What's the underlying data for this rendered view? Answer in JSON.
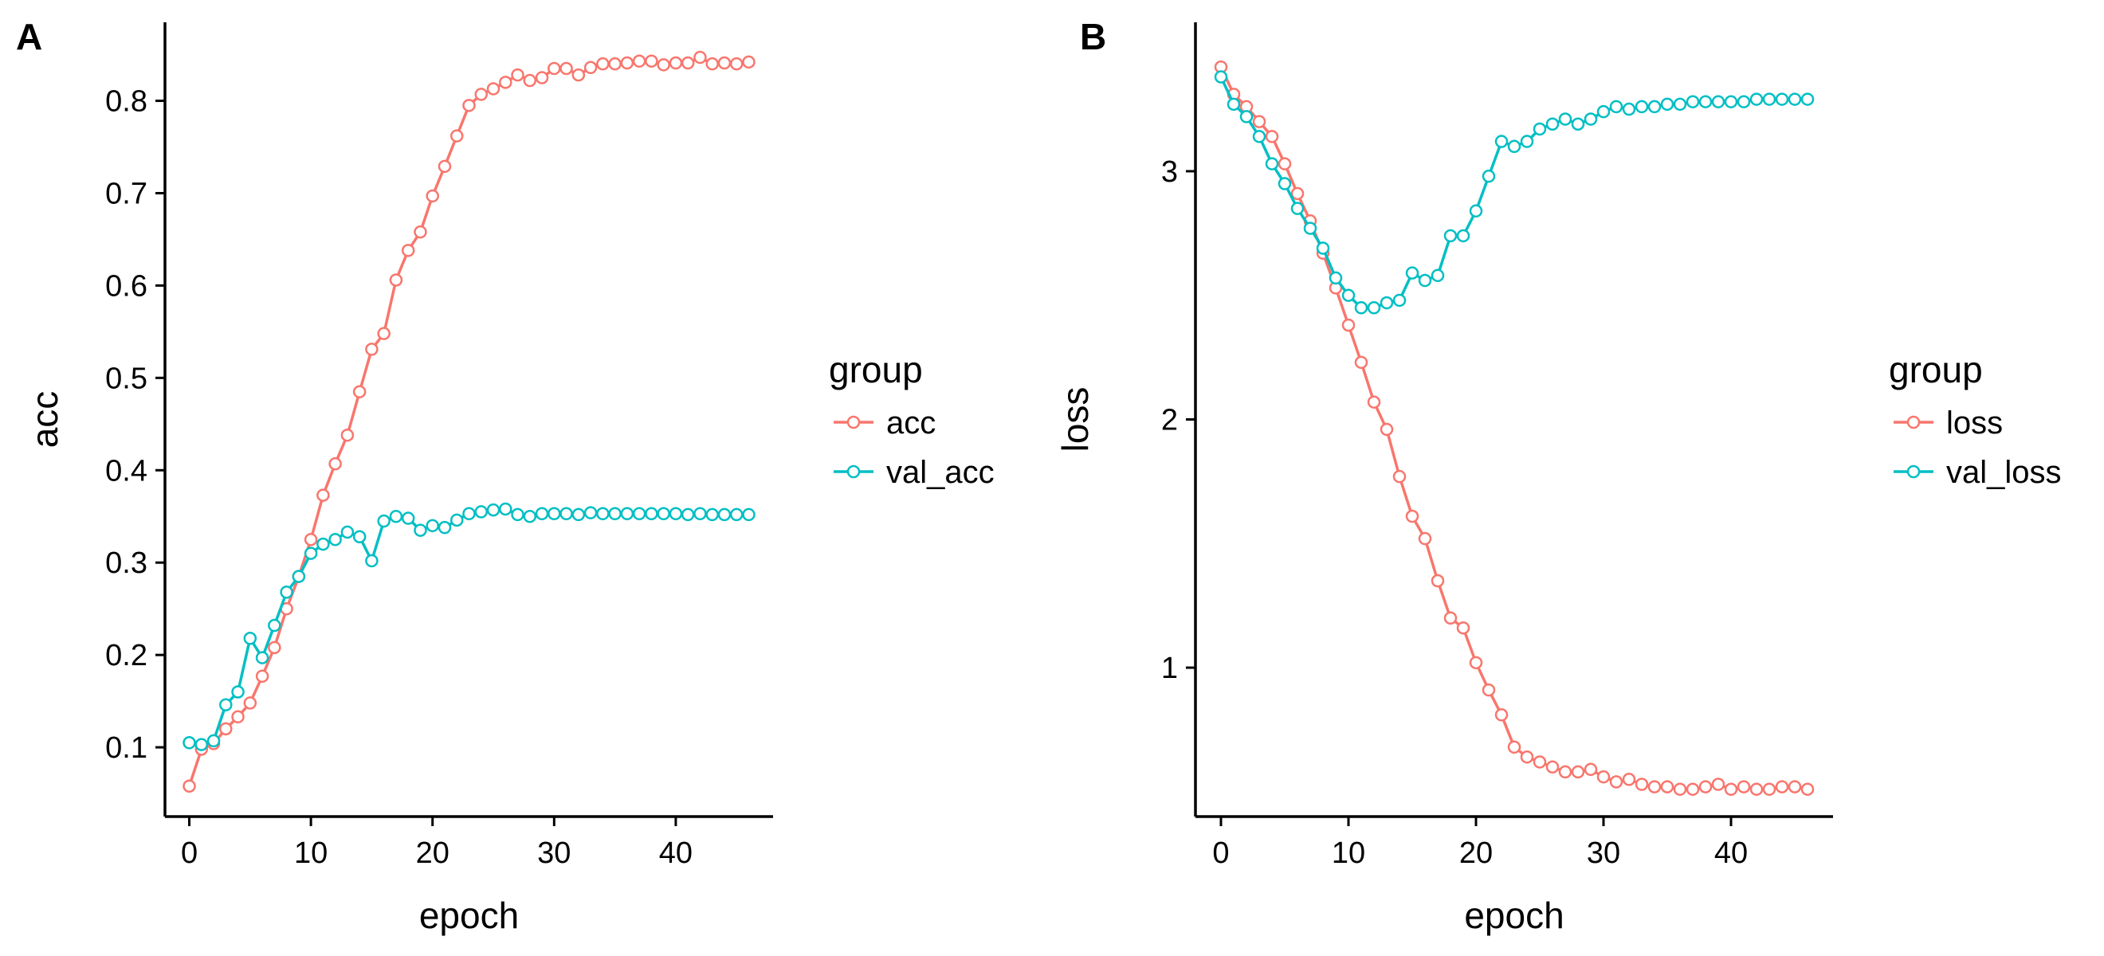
{
  "chart_data": [
    {
      "panel": "A",
      "type": "line",
      "xlabel": "epoch",
      "ylabel": "acc",
      "xlim": [
        -2,
        48
      ],
      "ylim": [
        0.025,
        0.885
      ],
      "xticks": [
        0,
        10,
        20,
        30,
        40
      ],
      "yticks": [
        0.1,
        0.2,
        0.3,
        0.4,
        0.5,
        0.6,
        0.7,
        0.8
      ],
      "grid": false,
      "legend": {
        "title": "group",
        "placement": "right"
      },
      "x": [
        0,
        1,
        2,
        3,
        4,
        5,
        6,
        7,
        8,
        9,
        10,
        11,
        12,
        13,
        14,
        15,
        16,
        17,
        18,
        19,
        20,
        21,
        22,
        23,
        24,
        25,
        26,
        27,
        28,
        29,
        30,
        31,
        32,
        33,
        34,
        35,
        36,
        37,
        38,
        39,
        40,
        41,
        42,
        43,
        44,
        45,
        46
      ],
      "series": [
        {
          "name": "acc",
          "color": "#F8766D",
          "values": [
            0.058,
            0.098,
            0.104,
            0.12,
            0.133,
            0.148,
            0.177,
            0.208,
            0.25,
            0.285,
            0.325,
            0.373,
            0.407,
            0.438,
            0.485,
            0.531,
            0.548,
            0.606,
            0.638,
            0.658,
            0.697,
            0.729,
            0.762,
            0.795,
            0.807,
            0.813,
            0.82,
            0.828,
            0.822,
            0.825,
            0.835,
            0.835,
            0.828,
            0.836,
            0.84,
            0.84,
            0.841,
            0.843,
            0.843,
            0.839,
            0.841,
            0.841,
            0.847,
            0.84,
            0.841,
            0.84,
            0.842
          ]
        },
        {
          "name": "val_acc",
          "color": "#00BFC4",
          "values": [
            0.105,
            0.103,
            0.107,
            0.146,
            0.16,
            0.218,
            0.197,
            0.232,
            0.268,
            0.285,
            0.31,
            0.32,
            0.325,
            0.333,
            0.328,
            0.302,
            0.345,
            0.35,
            0.348,
            0.335,
            0.34,
            0.338,
            0.346,
            0.353,
            0.355,
            0.357,
            0.358,
            0.352,
            0.35,
            0.353,
            0.353,
            0.353,
            0.352,
            0.354,
            0.353,
            0.353,
            0.353,
            0.353,
            0.353,
            0.353,
            0.353,
            0.352,
            0.353,
            0.352,
            0.352,
            0.352,
            0.352
          ]
        }
      ]
    },
    {
      "panel": "B",
      "type": "line",
      "xlabel": "epoch",
      "ylabel": "loss",
      "xlim": [
        -2,
        48
      ],
      "ylim": [
        0.4,
        3.6
      ],
      "xticks": [
        0,
        10,
        20,
        30,
        40
      ],
      "yticks": [
        1,
        2,
        3
      ],
      "grid": false,
      "legend": {
        "title": "group",
        "placement": "right"
      },
      "x": [
        0,
        1,
        2,
        3,
        4,
        5,
        6,
        7,
        8,
        9,
        10,
        11,
        12,
        13,
        14,
        15,
        16,
        17,
        18,
        19,
        20,
        21,
        22,
        23,
        24,
        25,
        26,
        27,
        28,
        29,
        30,
        31,
        32,
        33,
        34,
        35,
        36,
        37,
        38,
        39,
        40,
        41,
        42,
        43,
        44,
        45,
        46
      ],
      "series": [
        {
          "name": "loss",
          "color": "#F8766D",
          "values": [
            3.42,
            3.31,
            3.26,
            3.2,
            3.14,
            3.03,
            2.91,
            2.8,
            2.67,
            2.53,
            2.38,
            2.23,
            2.07,
            1.96,
            1.77,
            1.61,
            1.52,
            1.35,
            1.2,
            1.16,
            1.02,
            0.91,
            0.81,
            0.68,
            0.64,
            0.62,
            0.6,
            0.58,
            0.58,
            0.59,
            0.56,
            0.54,
            0.55,
            0.53,
            0.52,
            0.52,
            0.51,
            0.51,
            0.52,
            0.53,
            0.51,
            0.52,
            0.51,
            0.51,
            0.52,
            0.52,
            0.51
          ]
        },
        {
          "name": "val_loss",
          "color": "#00BFC4",
          "values": [
            3.38,
            3.27,
            3.22,
            3.14,
            3.03,
            2.95,
            2.85,
            2.77,
            2.69,
            2.57,
            2.5,
            2.45,
            2.45,
            2.47,
            2.48,
            2.59,
            2.56,
            2.58,
            2.74,
            2.74,
            2.84,
            2.98,
            3.12,
            3.1,
            3.12,
            3.17,
            3.19,
            3.21,
            3.19,
            3.21,
            3.24,
            3.26,
            3.25,
            3.26,
            3.26,
            3.27,
            3.27,
            3.28,
            3.28,
            3.28,
            3.28,
            3.28,
            3.29,
            3.29,
            3.29,
            3.29,
            3.29
          ]
        }
      ]
    }
  ]
}
